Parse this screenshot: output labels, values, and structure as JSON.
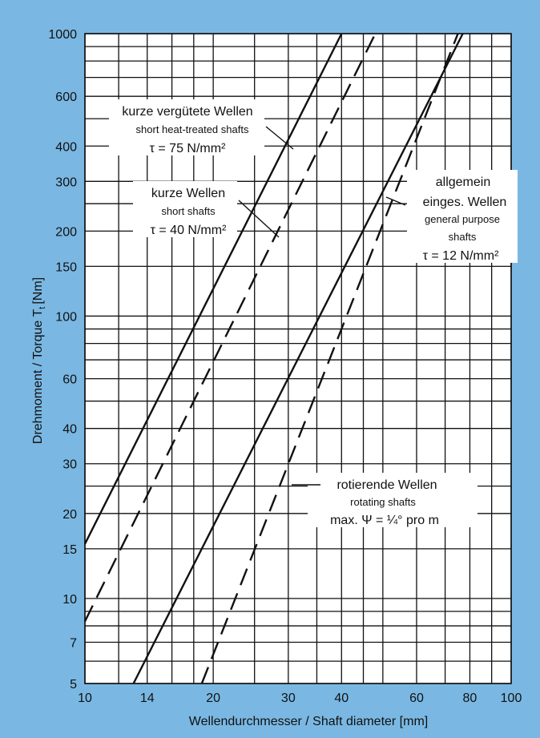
{
  "chart_data": {
    "type": "line",
    "x_scale": "log",
    "y_scale": "log",
    "xlim": [
      10,
      100
    ],
    "ylim": [
      5,
      1000
    ],
    "xlabel": "Wellendurchmesser / Shaft diameter [mm]",
    "ylabel_main": "Drehmoment / Torque T",
    "ylabel_sub": "t",
    "ylabel_unit": "[Nm]",
    "x_ticks": [
      10,
      14,
      20,
      30,
      40,
      60,
      80,
      100
    ],
    "y_ticks": [
      5,
      7,
      10,
      15,
      20,
      30,
      40,
      60,
      100,
      150,
      200,
      300,
      400,
      600,
      1000
    ],
    "x_grid": [
      10,
      12,
      14,
      16,
      18,
      20,
      25,
      30,
      35,
      40,
      45,
      50,
      60,
      70,
      80,
      90,
      100
    ],
    "y_grid": [
      5,
      6,
      7,
      8,
      9,
      10,
      15,
      20,
      25,
      30,
      40,
      50,
      60,
      70,
      80,
      90,
      100,
      150,
      200,
      250,
      300,
      400,
      500,
      600,
      700,
      800,
      900,
      1000
    ],
    "grid": true,
    "series": [
      {
        "style": "solid",
        "x": [
          10,
          40
        ],
        "y": [
          15.6,
          1000
        ]
      },
      {
        "style": "dashed",
        "x": [
          10,
          48
        ],
        "y": [
          8.3,
          1000
        ]
      },
      {
        "style": "solid",
        "x": [
          13.0,
          77
        ],
        "y": [
          5,
          1000
        ]
      },
      {
        "style": "dashed",
        "x": [
          18.8,
          75
        ],
        "y": [
          5,
          1000
        ]
      }
    ],
    "annotations": {
      "a1": {
        "line1": "kurze vergütete Wellen",
        "line2": "short heat-treated shafts",
        "line3": "τ = 75 N/mm²"
      },
      "a2": {
        "line1": "kurze Wellen",
        "line2": "short shafts",
        "line3": "τ = 40 N/mm²"
      },
      "a3": {
        "line1": "allgemein",
        "line2": "einges. Wellen",
        "line3": "general purpose",
        "line4": "shafts",
        "line5": "τ = 12 N/mm²"
      },
      "a4": {
        "line1": "rotierende Wellen",
        "line2": "rotating shafts",
        "line3": "max. Ψ = ¼° pro m"
      }
    }
  },
  "colors": {
    "background": "#7ab8e3",
    "plot": "#ffffff",
    "ink": "#111111"
  }
}
